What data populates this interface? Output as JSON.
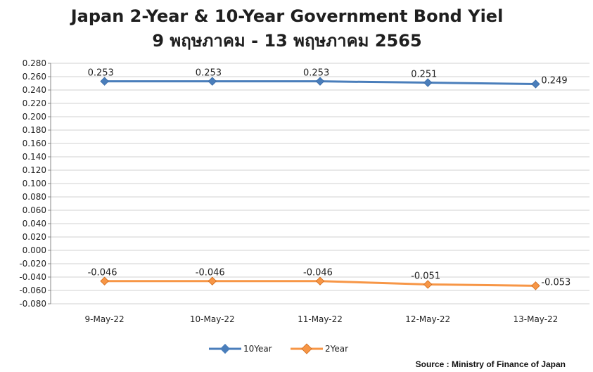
{
  "chart_data": {
    "type": "line",
    "title": "Japan 2-Year & 10-Year Government Bond Yiel",
    "subtitle": "9 พฤษภาคม - 13 พฤษภาคม 2565",
    "categories": [
      "9-May-22",
      "10-May-22",
      "11-May-22",
      "12-May-22",
      "13-May-22"
    ],
    "series": [
      {
        "name": "10Year",
        "values": [
          0.253,
          0.253,
          0.253,
          0.251,
          0.249
        ],
        "labels": [
          "0.253",
          "0.253",
          "0.253",
          "0.251",
          "0.249"
        ],
        "color": "#4a7ebb"
      },
      {
        "name": "2Year",
        "values": [
          -0.046,
          -0.046,
          -0.046,
          -0.051,
          -0.053
        ],
        "labels": [
          "-0.046",
          "-0.046",
          "-0.046",
          "-0.051",
          "-0.053"
        ],
        "color": "#f79646"
      }
    ],
    "ylim": [
      -0.08,
      0.28
    ],
    "ytick_step": 0.02,
    "ytick_labels": [
      "0.280",
      "0.260",
      "0.240",
      "0.220",
      "0.200",
      "0.180",
      "0.160",
      "0.140",
      "0.120",
      "0.100",
      "0.080",
      "0.060",
      "0.040",
      "0.020",
      "0.000",
      "-0.020",
      "-0.040",
      "-0.060",
      "-0.080"
    ],
    "grid": true,
    "legend": "bottom",
    "xlabel": "",
    "ylabel": ""
  },
  "source": "Source : Ministry of Finance of Japan",
  "colors": {
    "background": "#ffffff",
    "gridline": "#d0d0d0",
    "axis": "#888888"
  }
}
